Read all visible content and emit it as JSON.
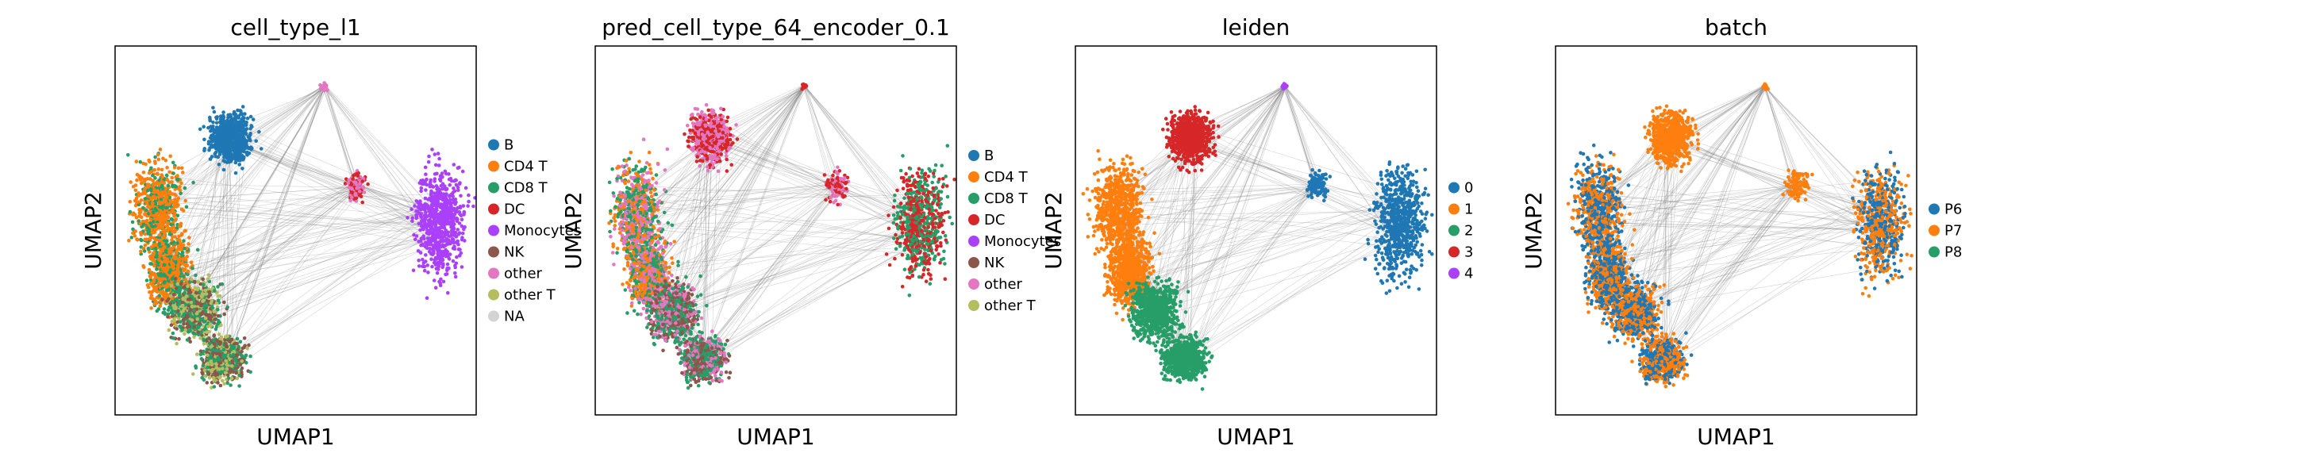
{
  "chart_data": [
    {
      "type": "scatter",
      "title": "cell_type_l1",
      "xlabel": "UMAP1",
      "ylabel": "UMAP2",
      "legend_placement": "right",
      "legend": [
        {
          "label": "B",
          "color": "#1f77b4"
        },
        {
          "label": "CD4 T",
          "color": "#ff7f0e"
        },
        {
          "label": "CD8 T",
          "color": "#279e68"
        },
        {
          "label": "DC",
          "color": "#d62728"
        },
        {
          "label": "Monocytes",
          "color": "#aa40fc"
        },
        {
          "label": "NK",
          "color": "#8c564b"
        },
        {
          "label": "other",
          "color": "#e377c2"
        },
        {
          "label": "other T",
          "color": "#b5bd61"
        },
        {
          "label": "NA",
          "color": "#d3d3d3"
        }
      ]
    },
    {
      "type": "scatter",
      "title": "pred_cell_type_64_encoder_0.1",
      "xlabel": "UMAP1",
      "ylabel": "UMAP2",
      "legend_placement": "right",
      "legend": [
        {
          "label": "B",
          "color": "#1f77b4"
        },
        {
          "label": "CD4 T",
          "color": "#ff7f0e"
        },
        {
          "label": "CD8 T",
          "color": "#279e68"
        },
        {
          "label": "DC",
          "color": "#d62728"
        },
        {
          "label": "Monocytes",
          "color": "#aa40fc"
        },
        {
          "label": "NK",
          "color": "#8c564b"
        },
        {
          "label": "other",
          "color": "#e377c2"
        },
        {
          "label": "other T",
          "color": "#b5bd61"
        }
      ]
    },
    {
      "type": "scatter",
      "title": "leiden",
      "xlabel": "UMAP1",
      "ylabel": "UMAP2",
      "legend_placement": "right",
      "legend": [
        {
          "label": "0",
          "color": "#1f77b4"
        },
        {
          "label": "1",
          "color": "#ff7f0e"
        },
        {
          "label": "2",
          "color": "#279e68"
        },
        {
          "label": "3",
          "color": "#d62728"
        },
        {
          "label": "4",
          "color": "#aa40fc"
        }
      ]
    },
    {
      "type": "scatter",
      "title": "batch",
      "xlabel": "UMAP1",
      "ylabel": "UMAP2",
      "legend_placement": "right",
      "legend": [
        {
          "label": "P6",
          "color": "#1f77b4"
        },
        {
          "label": "P7",
          "color": "#ff7f0e"
        },
        {
          "label": "P8",
          "color": "#279e68"
        }
      ]
    }
  ]
}
